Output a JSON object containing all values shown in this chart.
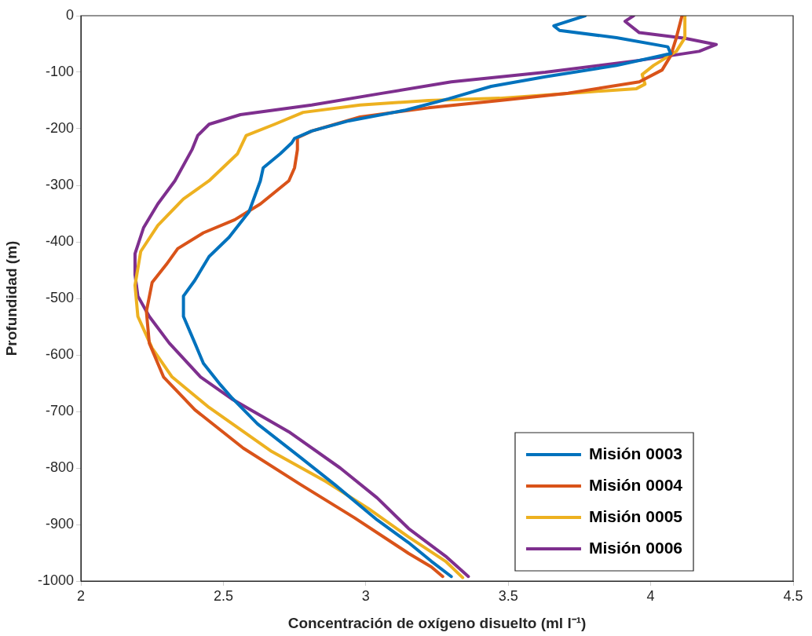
{
  "chart_data": {
    "type": "line",
    "xlabel": "Concentración de oxígeno disuelto (ml l⁻¹)",
    "ylabel": "Profundidad (m)",
    "xlim": [
      2,
      4.5
    ],
    "xticks": [
      2,
      2.5,
      3,
      3.5,
      4,
      4.5
    ],
    "ylim": [
      -1000,
      0
    ],
    "yticks": [
      -1000,
      -900,
      -800,
      -700,
      -600,
      -500,
      -400,
      -300,
      -200,
      -100,
      0
    ],
    "grid": false,
    "legend": "bottom right",
    "marker": "none",
    "line_style": "solid",
    "series": [
      {
        "name": "Misión 0003",
        "color": "#0072bd",
        "x": [
          3.77,
          3.66,
          3.68,
          3.88,
          4.06,
          4.07,
          3.88,
          3.63,
          3.44,
          3.29,
          3.14,
          2.94,
          2.81,
          2.75,
          2.74,
          2.7,
          2.64,
          2.63,
          2.59,
          2.52,
          2.45,
          2.4,
          2.36,
          2.36,
          2.4,
          2.43,
          2.49,
          2.53,
          2.62,
          2.77,
          2.89,
          3.04,
          3.15,
          3.23,
          3.3
        ],
        "values": [
          0,
          -18,
          -26,
          -39,
          -55,
          -67,
          -88,
          -108,
          -125,
          -147,
          -167,
          -186,
          -204,
          -217,
          -225,
          -244,
          -269,
          -292,
          -347,
          -392,
          -426,
          -468,
          -496,
          -532,
          -579,
          -615,
          -653,
          -676,
          -722,
          -781,
          -829,
          -892,
          -932,
          -965,
          -992
        ]
      },
      {
        "name": "Misión 0004",
        "color": "#d95319",
        "x": [
          4.11,
          4.09,
          4.07,
          4.04,
          3.96,
          3.71,
          3.47,
          3.22,
          2.98,
          2.81,
          2.76,
          2.76,
          2.75,
          2.73,
          2.63,
          2.54,
          2.43,
          2.34,
          2.3,
          2.25,
          2.23,
          2.24,
          2.29,
          2.36,
          2.4,
          2.57,
          2.77,
          2.96,
          3.15,
          3.23,
          3.27
        ],
        "values": [
          0,
          -39,
          -71,
          -96,
          -117,
          -137,
          -150,
          -163,
          -179,
          -204,
          -216,
          -237,
          -269,
          -292,
          -333,
          -361,
          -384,
          -412,
          -440,
          -472,
          -523,
          -579,
          -639,
          -676,
          -697,
          -765,
          -829,
          -888,
          -951,
          -975,
          -992
        ]
      },
      {
        "name": "Misión 0005",
        "color": "#edb120",
        "x": [
          4.12,
          4.12,
          4.09,
          4.01,
          3.97,
          3.98,
          3.95,
          3.75,
          3.47,
          3.22,
          2.98,
          2.78,
          2.68,
          2.58,
          2.55,
          2.45,
          2.36,
          2.27,
          2.21,
          2.19,
          2.2,
          2.25,
          2.32,
          2.45,
          2.67,
          2.86,
          3.01,
          3.15,
          3.28,
          3.34
        ],
        "values": [
          0,
          -39,
          -63,
          -88,
          -104,
          -121,
          -129,
          -136,
          -146,
          -150,
          -158,
          -171,
          -192,
          -212,
          -244,
          -292,
          -324,
          -371,
          -417,
          -477,
          -532,
          -588,
          -639,
          -693,
          -771,
          -824,
          -872,
          -922,
          -965,
          -994
        ]
      },
      {
        "name": "Misión 0006",
        "color": "#7e2f8e",
        "x": [
          3.94,
          3.91,
          3.96,
          4.12,
          4.23,
          4.17,
          3.96,
          3.63,
          3.3,
          3.06,
          2.81,
          2.56,
          2.45,
          2.41,
          2.39,
          2.33,
          2.27,
          2.22,
          2.19,
          2.19,
          2.2,
          2.24,
          2.31,
          2.42,
          2.53,
          2.73,
          2.91,
          3.04,
          3.15,
          3.28,
          3.36
        ],
        "values": [
          0,
          -10,
          -30,
          -40,
          -51,
          -63,
          -79,
          -100,
          -117,
          -137,
          -158,
          -175,
          -192,
          -212,
          -237,
          -292,
          -333,
          -375,
          -421,
          -458,
          -496,
          -532,
          -579,
          -639,
          -678,
          -736,
          -800,
          -853,
          -907,
          -956,
          -992
        ]
      }
    ]
  }
}
